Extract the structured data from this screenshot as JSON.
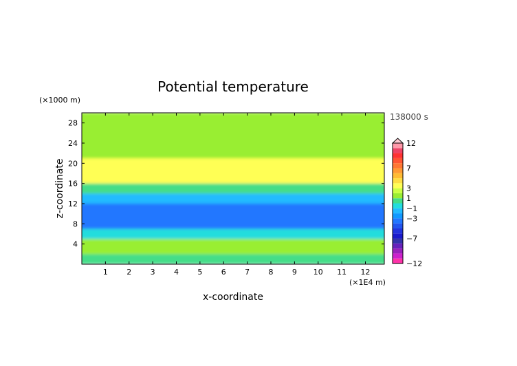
{
  "chart_data": {
    "type": "heatmap",
    "title": "Potential temperature",
    "xlabel": "x-coordinate",
    "ylabel": "z-coordinate",
    "x_unit": "(×1E4 m)",
    "y_unit": "(×1000 m)",
    "time_label": "138000 s",
    "xlim": [
      0,
      12.8
    ],
    "ylim": [
      0,
      30
    ],
    "x_ticks": [
      "1",
      "2",
      "3",
      "4",
      "5",
      "6",
      "7",
      "8",
      "9",
      "10",
      "11",
      "12"
    ],
    "y_ticks": [
      "4",
      "8",
      "12",
      "16",
      "20",
      "24",
      "28"
    ],
    "colorbar": {
      "tick_labels": [
        "12",
        "7",
        "3",
        "1",
        "−1",
        "−3",
        "−7",
        "−12"
      ],
      "levels": [
        -12,
        -11,
        -10,
        -9,
        -8,
        -7,
        -6,
        -5,
        -4,
        -3,
        -2,
        -1,
        0,
        1,
        2,
        3,
        4,
        5,
        6,
        7,
        8,
        9,
        10,
        11,
        12
      ],
      "colors": [
        "#ff33aa",
        "#cc22cc",
        "#9922bb",
        "#6622bb",
        "#3333aa",
        "#1a1acc",
        "#2233dd",
        "#2255ee",
        "#2277ff",
        "#1199ff",
        "#22bbff",
        "#22dddd",
        "#44dd88",
        "#99ee33",
        "#ccff44",
        "#ffff55",
        "#ffdd44",
        "#ffbb33",
        "#ff9933",
        "#ff7733",
        "#ff5533",
        "#ff3333",
        "#ee4466",
        "#ff99aa"
      ]
    },
    "bands": [
      {
        "z": [
          0,
          2
        ],
        "value": 0
      },
      {
        "z": [
          2,
          5
        ],
        "value": 1
      },
      {
        "z": [
          5,
          7
        ],
        "value": -1
      },
      {
        "z": [
          7,
          12
        ],
        "value": -4
      },
      {
        "z": [
          12,
          14
        ],
        "value": -2
      },
      {
        "z": [
          14,
          16
        ],
        "value": 0
      },
      {
        "z": [
          16,
          21
        ],
        "value": 3
      },
      {
        "z": [
          21,
          24
        ],
        "value": 1
      },
      {
        "z": [
          24,
          30
        ],
        "value": 1
      }
    ]
  }
}
